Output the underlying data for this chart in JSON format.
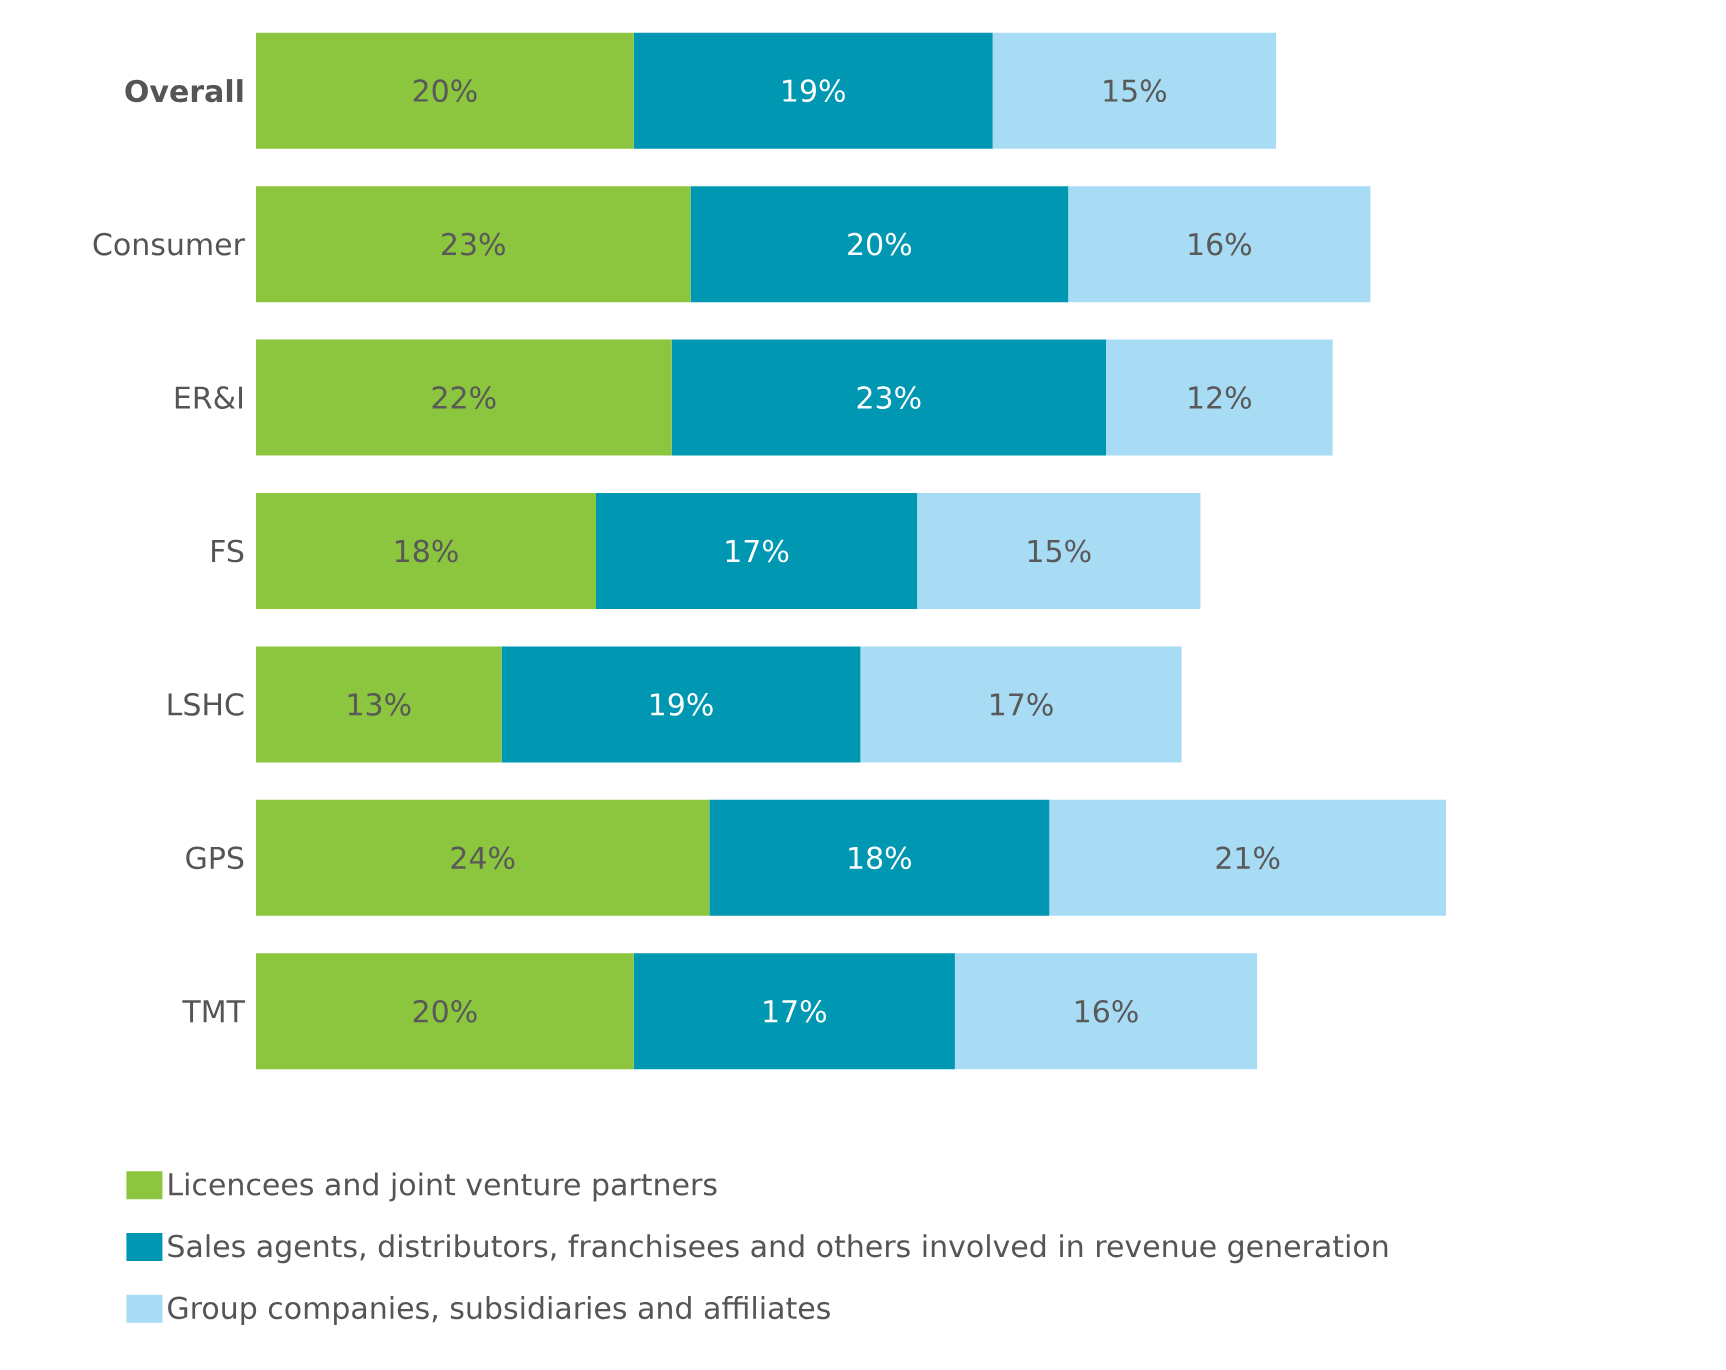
{
  "chart_data": {
    "type": "bar",
    "orientation": "horizontal",
    "stacked": true,
    "legend": "bottom",
    "categories": [
      "Overall",
      "Consumer",
      "ER&I",
      "FS",
      "LSHC",
      "GPS",
      "TMT"
    ],
    "series": [
      {
        "name": "Licencees and joint venture partners",
        "color": "#8cc63e",
        "values": [
          20,
          23,
          22,
          18,
          13,
          24,
          20
        ],
        "value_labels": [
          "20%",
          "23%",
          "22%",
          "18%",
          "13%",
          "24%",
          "20%"
        ]
      },
      {
        "name": "Sales agents, distributors, franchisees and others involved in revenue generation",
        "color": "#0097b2",
        "values": [
          19,
          20,
          23,
          17,
          19,
          18,
          17
        ],
        "value_labels": [
          "19%",
          "20%",
          "23%",
          "17%",
          "19%",
          "18%",
          "17%"
        ]
      },
      {
        "name": "Group companies, subsidiaries and affiliates",
        "color": "#a8dcf5",
        "values": [
          15,
          16,
          12,
          15,
          17,
          21,
          16
        ],
        "value_labels": [
          "15%",
          "16%",
          "12%",
          "15%",
          "17%",
          "21%",
          "16%"
        ]
      }
    ]
  }
}
